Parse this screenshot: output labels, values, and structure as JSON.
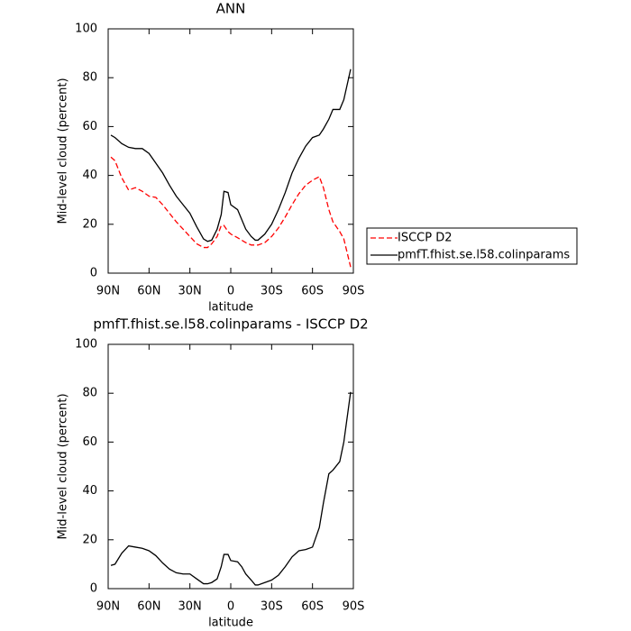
{
  "chart_data": [
    {
      "type": "line",
      "title": "ANN",
      "x_label": "latitude",
      "y_label": "Mid-level cloud (percent)",
      "xlim": [
        90,
        -90
      ],
      "xticks": [
        {
          "value": 90,
          "label": "90N"
        },
        {
          "value": 60,
          "label": "60N"
        },
        {
          "value": 30,
          "label": "30N"
        },
        0,
        {
          "value": -30,
          "label": "30S"
        },
        {
          "value": -60,
          "label": "60S"
        },
        {
          "value": -90,
          "label": "90S"
        }
      ],
      "ylim": [
        0,
        100
      ],
      "yticks": [
        0,
        20,
        40,
        60,
        80,
        100
      ],
      "legend": "right",
      "x": [
        88,
        85,
        80,
        75,
        70,
        65,
        60,
        55,
        50,
        45,
        40,
        35,
        30,
        25,
        20,
        17,
        14,
        10,
        7,
        5,
        2,
        0,
        -5,
        -8,
        -11,
        -15,
        -18,
        -20,
        -25,
        -30,
        -35,
        -40,
        -45,
        -50,
        -55,
        -60,
        -65,
        -68,
        -72,
        -75,
        -80,
        -83,
        -88
      ],
      "series": [
        {
          "name": "ISCCP D2",
          "color": "#ff0000",
          "dashed": true,
          "values": [
            47.5,
            46,
            39,
            34,
            35,
            33.5,
            31.5,
            31,
            28,
            24.5,
            21,
            18,
            15,
            12,
            10.5,
            10.5,
            12,
            15,
            19.5,
            19.5,
            17,
            16,
            14.5,
            13.5,
            12.5,
            11.5,
            11.5,
            11.5,
            12.5,
            15,
            18.5,
            23,
            28,
            32.5,
            36,
            38,
            39.5,
            35,
            26,
            21,
            17,
            14,
            2.5
          ]
        },
        {
          "name": "pmfT.fhist.se.l58.colinparams",
          "color": "#000000",
          "dashed": false,
          "values": [
            56.5,
            55.5,
            53,
            51.5,
            51,
            51,
            49,
            45,
            41,
            36,
            31.5,
            28,
            24.5,
            19,
            14,
            13,
            13.5,
            18,
            24,
            33.5,
            33,
            28,
            26,
            22,
            18,
            15,
            13.5,
            13.5,
            16,
            20,
            26,
            33,
            41,
            47,
            52,
            55.5,
            56.5,
            59,
            63,
            67,
            67,
            71,
            83.5
          ]
        }
      ]
    },
    {
      "type": "line",
      "title": "pmfT.fhist.se.l58.colinparams - ISCCP D2",
      "x_label": "latitude",
      "y_label": "Mid-level cloud (percent)",
      "xlim": [
        90,
        -90
      ],
      "xticks": [
        {
          "value": 90,
          "label": "90N"
        },
        {
          "value": 60,
          "label": "60N"
        },
        {
          "value": 30,
          "label": "30N"
        },
        0,
        {
          "value": -30,
          "label": "30S"
        },
        {
          "value": -60,
          "label": "60S"
        },
        {
          "value": -90,
          "label": "90S"
        }
      ],
      "ylim": [
        0,
        100
      ],
      "yticks": [
        0,
        20,
        40,
        60,
        80,
        100
      ],
      "x": [
        88,
        85,
        80,
        75,
        70,
        65,
        60,
        55,
        50,
        45,
        40,
        35,
        30,
        25,
        20,
        17,
        14,
        10,
        7,
        5,
        2,
        0,
        -5,
        -8,
        -11,
        -15,
        -18,
        -20,
        -25,
        -30,
        -35,
        -40,
        -45,
        -50,
        -55,
        -60,
        -65,
        -68,
        -72,
        -75,
        -80,
        -83,
        -88
      ],
      "series": [
        {
          "color": "#000000",
          "dashed": false,
          "values": [
            9.5,
            10,
            14.5,
            17.5,
            17,
            16.5,
            15.5,
            13.5,
            10.5,
            8,
            6.5,
            6,
            6,
            4,
            2,
            2,
            2.5,
            4,
            9,
            14,
            14,
            11.5,
            11,
            9,
            6,
            3.5,
            1.5,
            1.5,
            2.5,
            3.5,
            5.5,
            9,
            13,
            15.5,
            16,
            17,
            25,
            35,
            47,
            48.5,
            52,
            60,
            80.5
          ]
        }
      ]
    }
  ]
}
